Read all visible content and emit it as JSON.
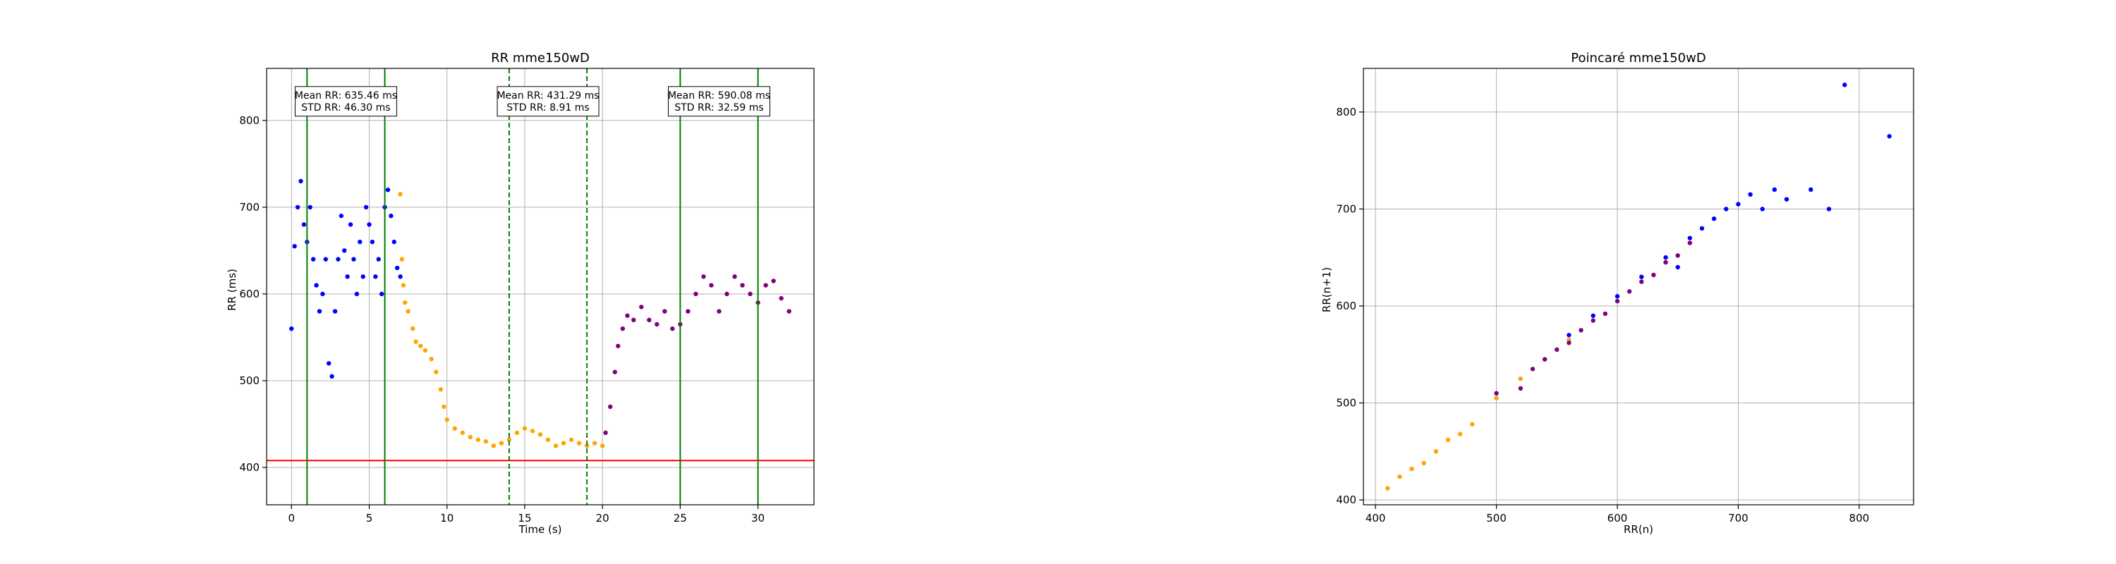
{
  "colors": {
    "segment_1": "#0000ff",
    "segment_2": "#ffa500",
    "segment_3": "#800080",
    "marker_line": "#008000",
    "threshold_line": "#ff0000",
    "grid": "#b0b0b0"
  },
  "chart_data": [
    {
      "type": "scatter",
      "title": "RR mme150wD",
      "xlabel": "Time (s)",
      "ylabel": "RR (ms)",
      "xlim": [
        -1.6,
        33.6
      ],
      "ylim": [
        357,
        860
      ],
      "xticks": [
        0,
        5,
        10,
        15,
        20,
        25,
        30
      ],
      "yticks": [
        400,
        500,
        600,
        700,
        800
      ],
      "grid": true,
      "threshold": {
        "y": 408,
        "color": "#ff0000"
      },
      "vertical_lines": [
        {
          "x": 1,
          "style": "solid"
        },
        {
          "x": 6,
          "style": "solid"
        },
        {
          "x": 14,
          "style": "dashed"
        },
        {
          "x": 19,
          "style": "dashed"
        },
        {
          "x": 25,
          "style": "solid"
        },
        {
          "x": 30,
          "style": "solid"
        }
      ],
      "annotations": [
        {
          "x": 3.5,
          "y": 822,
          "lines": [
            "Mean RR: 635.46 ms",
            "STD RR: 46.30 ms"
          ]
        },
        {
          "x": 16.5,
          "y": 822,
          "lines": [
            "Mean RR: 431.29 ms",
            "STD RR: 8.91 ms"
          ]
        },
        {
          "x": 27.5,
          "y": 822,
          "lines": [
            "Mean RR: 590.08 ms",
            "STD RR: 32.59 ms"
          ]
        }
      ],
      "series": [
        {
          "color": "#0000ff",
          "points": [
            [
              0,
              560
            ],
            [
              0.2,
              655
            ],
            [
              0.4,
              700
            ],
            [
              0.6,
              730
            ],
            [
              0.8,
              680
            ],
            [
              1,
              660
            ],
            [
              1.2,
              700
            ],
            [
              1.4,
              640
            ],
            [
              1.6,
              610
            ],
            [
              1.8,
              580
            ],
            [
              2,
              600
            ],
            [
              2.2,
              640
            ],
            [
              2.4,
              520
            ],
            [
              2.6,
              505
            ],
            [
              2.8,
              580
            ],
            [
              3,
              640
            ],
            [
              3.2,
              690
            ],
            [
              3.4,
              650
            ],
            [
              3.6,
              620
            ],
            [
              3.8,
              680
            ],
            [
              4,
              640
            ],
            [
              4.2,
              600
            ],
            [
              4.4,
              660
            ],
            [
              4.6,
              620
            ],
            [
              4.8,
              700
            ],
            [
              5,
              680
            ],
            [
              5.2,
              660
            ],
            [
              5.4,
              620
            ],
            [
              5.6,
              640
            ],
            [
              5.8,
              600
            ],
            [
              6,
              700
            ],
            [
              6.2,
              720
            ],
            [
              6.4,
              690
            ],
            [
              6.6,
              660
            ],
            [
              6.8,
              630
            ],
            [
              7,
              620
            ]
          ]
        },
        {
          "color": "#ffa500",
          "points": [
            [
              7,
              715
            ],
            [
              7.1,
              640
            ],
            [
              7.2,
              610
            ],
            [
              7.3,
              590
            ],
            [
              7.5,
              580
            ],
            [
              7.8,
              560
            ],
            [
              8,
              545
            ],
            [
              8.3,
              540
            ],
            [
              8.6,
              535
            ],
            [
              9,
              525
            ],
            [
              9.3,
              510
            ],
            [
              9.6,
              490
            ],
            [
              9.8,
              470
            ],
            [
              10,
              455
            ],
            [
              10.5,
              445
            ],
            [
              11,
              440
            ],
            [
              11.5,
              435
            ],
            [
              12,
              432
            ],
            [
              12.5,
              430
            ],
            [
              13,
              425
            ],
            [
              13.5,
              428
            ],
            [
              14,
              432
            ],
            [
              14.5,
              440
            ],
            [
              15,
              445
            ],
            [
              15.5,
              442
            ],
            [
              16,
              438
            ],
            [
              16.5,
              432
            ],
            [
              17,
              425
            ],
            [
              17.5,
              428
            ],
            [
              18,
              432
            ],
            [
              18.5,
              428
            ],
            [
              19,
              425
            ],
            [
              19.5,
              428
            ],
            [
              20,
              425
            ]
          ]
        },
        {
          "color": "#800080",
          "points": [
            [
              20.2,
              440
            ],
            [
              20.5,
              470
            ],
            [
              20.8,
              510
            ],
            [
              21,
              540
            ],
            [
              21.3,
              560
            ],
            [
              21.6,
              575
            ],
            [
              22,
              570
            ],
            [
              22.5,
              585
            ],
            [
              23,
              570
            ],
            [
              23.5,
              565
            ],
            [
              24,
              580
            ],
            [
              24.5,
              560
            ],
            [
              25,
              565
            ],
            [
              25.5,
              580
            ],
            [
              26,
              600
            ],
            [
              26.5,
              620
            ],
            [
              27,
              610
            ],
            [
              27.5,
              580
            ],
            [
              28,
              600
            ],
            [
              28.5,
              620
            ],
            [
              29,
              610
            ],
            [
              29.5,
              600
            ],
            [
              30,
              590
            ],
            [
              30.5,
              610
            ],
            [
              31,
              615
            ],
            [
              31.5,
              595
            ],
            [
              32,
              580
            ]
          ]
        }
      ]
    },
    {
      "type": "scatter",
      "title": "Poincaré mme150wD",
      "xlabel": "RR(n)",
      "ylabel": "RR(n+1)",
      "xlim": [
        390,
        845
      ],
      "ylim": [
        395,
        845
      ],
      "xticks": [
        400,
        500,
        600,
        700,
        800
      ],
      "yticks": [
        400,
        500,
        600,
        700,
        800
      ],
      "grid": true,
      "series": [
        {
          "color": "#ffa500",
          "points": [
            [
              410,
              412
            ],
            [
              420,
              424
            ],
            [
              430,
              432
            ],
            [
              440,
              438
            ],
            [
              450,
              450
            ],
            [
              460,
              462
            ],
            [
              470,
              468
            ],
            [
              480,
              478
            ],
            [
              500,
              505
            ],
            [
              520,
              525
            ],
            [
              540,
              545
            ],
            [
              560,
              565
            ],
            [
              600,
              610
            ],
            [
              640,
              645
            ]
          ]
        },
        {
          "color": "#800080",
          "points": [
            [
              500,
              510
            ],
            [
              520,
              515
            ],
            [
              530,
              535
            ],
            [
              540,
              545
            ],
            [
              550,
              555
            ],
            [
              560,
              562
            ],
            [
              570,
              575
            ],
            [
              580,
              585
            ],
            [
              590,
              592
            ],
            [
              600,
              605
            ],
            [
              610,
              615
            ],
            [
              620,
              625
            ],
            [
              630,
              632
            ],
            [
              640,
              645
            ],
            [
              650,
              652
            ],
            [
              660,
              665
            ]
          ]
        },
        {
          "color": "#0000ff",
          "points": [
            [
              560,
              570
            ],
            [
              580,
              590
            ],
            [
              600,
              610
            ],
            [
              620,
              630
            ],
            [
              640,
              650
            ],
            [
              650,
              640
            ],
            [
              660,
              670
            ],
            [
              670,
              680
            ],
            [
              680,
              690
            ],
            [
              690,
              700
            ],
            [
              700,
              705
            ],
            [
              710,
              715
            ],
            [
              720,
              700
            ],
            [
              730,
              720
            ],
            [
              740,
              710
            ],
            [
              760,
              720
            ],
            [
              775,
              700
            ],
            [
              788,
              828
            ],
            [
              825,
              775
            ]
          ]
        }
      ]
    }
  ]
}
